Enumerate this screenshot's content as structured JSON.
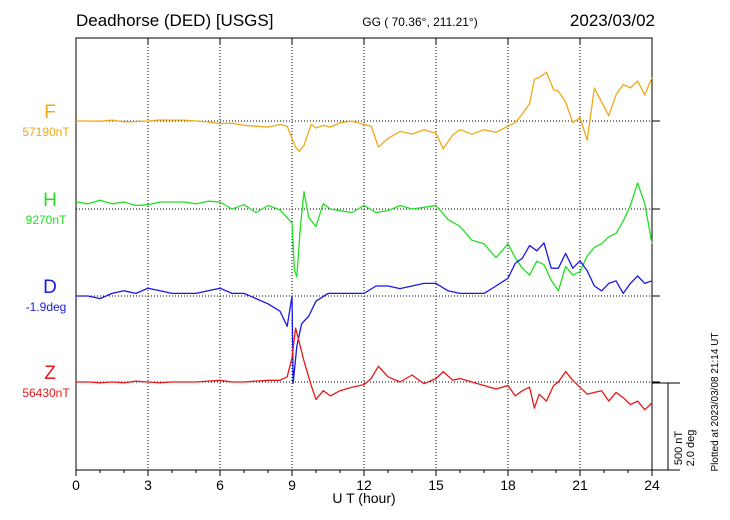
{
  "header": {
    "station": "Deadhorse (DED)  [USGS]",
    "coords": "GG ( 70.36°, 211.21°)",
    "date": "2023/03/02"
  },
  "footer": {
    "xlabel": "U T (hour)",
    "plotted": "Plotted at 2023/03/08 21:14 UT"
  },
  "scale": {
    "nt": "500 nT",
    "deg": "2.0 deg"
  },
  "chart_data": {
    "type": "line",
    "title": "Deadhorse (DED)  [USGS]",
    "xlabel": "U T (hour)",
    "ylabel": "",
    "xlim": [
      0,
      24
    ],
    "xticks": [
      0,
      3,
      6,
      9,
      12,
      15,
      18,
      21,
      24
    ],
    "xtick_labels": [
      "0",
      "3",
      "6",
      "9",
      "12",
      "15",
      "18",
      "21",
      "24"
    ],
    "grid": true,
    "scale_bar": {
      "nT": 500,
      "deg": 2.0
    },
    "series": [
      {
        "name": "F",
        "baseline_label": "57190nT",
        "unit": "nT",
        "color": "#f0a818",
        "x": [
          0,
          0.5,
          1,
          1.5,
          2,
          2.5,
          3,
          3.5,
          4,
          4.5,
          5,
          5.5,
          6,
          6.5,
          7,
          7.5,
          8,
          8.5,
          8.8,
          9,
          9.15,
          9.3,
          9.5,
          9.8,
          10,
          10.3,
          10.6,
          11,
          11.5,
          12,
          12.3,
          12.6,
          13,
          13.5,
          14,
          14.5,
          15,
          15.3,
          15.7,
          16,
          16.5,
          17,
          17.5,
          18,
          18.3,
          18.6,
          18.9,
          19.1,
          19.3,
          19.6,
          19.9,
          20.1,
          20.4,
          20.7,
          21,
          21.3,
          21.6,
          21.9,
          22.2,
          22.5,
          22.8,
          23.1,
          23.4,
          23.7,
          24
        ],
        "y": [
          0,
          0,
          -1,
          5,
          -5,
          -3,
          0,
          6,
          5,
          5,
          0,
          -5,
          -15,
          -12,
          -25,
          -30,
          -35,
          -20,
          -30,
          -100,
          -150,
          -175,
          -140,
          -20,
          -40,
          -25,
          -35,
          -10,
          0,
          -20,
          -30,
          -150,
          -100,
          -60,
          -75,
          -50,
          -70,
          -160,
          -80,
          -50,
          -75,
          -50,
          -65,
          -30,
          -10,
          40,
          100,
          240,
          250,
          280,
          180,
          170,
          110,
          -10,
          20,
          -110,
          190,
          110,
          30,
          150,
          210,
          190,
          230,
          150,
          250
        ]
      },
      {
        "name": "H",
        "baseline_label": "9270nT",
        "unit": "nT",
        "color": "#22e022",
        "x": [
          0,
          0.5,
          1,
          1.5,
          2,
          2.5,
          3,
          3.5,
          4,
          4.5,
          5,
          5.5,
          6,
          6.5,
          7,
          7.5,
          8,
          8.5,
          9,
          9.1,
          9.2,
          9.35,
          9.5,
          9.7,
          10,
          10.3,
          10.6,
          11,
          11.5,
          12,
          12.5,
          13,
          13.5,
          14,
          14.5,
          15,
          15.5,
          16,
          16.5,
          17,
          17.5,
          18,
          18.3,
          18.6,
          18.9,
          19.2,
          19.5,
          19.8,
          20.1,
          20.4,
          20.7,
          21,
          21.3,
          21.6,
          21.9,
          22.2,
          22.5,
          22.8,
          23.1,
          23.4,
          23.7,
          24
        ],
        "y": [
          40,
          30,
          50,
          30,
          40,
          20,
          25,
          40,
          40,
          40,
          30,
          45,
          40,
          0,
          25,
          -20,
          20,
          -5,
          -80,
          -350,
          -390,
          -100,
          100,
          -50,
          -100,
          30,
          0,
          -10,
          -20,
          20,
          -20,
          -10,
          20,
          0,
          10,
          20,
          -60,
          -100,
          -180,
          -200,
          -280,
          -200,
          -280,
          -340,
          -380,
          -300,
          -320,
          -410,
          -470,
          -330,
          -380,
          -360,
          -270,
          -220,
          -200,
          -160,
          -140,
          -70,
          20,
          150,
          30,
          -200
        ]
      },
      {
        "name": "D",
        "baseline_label": "-1.9deg",
        "unit": "deg",
        "color": "#1818e8",
        "x": [
          0,
          0.5,
          1,
          1.5,
          2,
          2.5,
          3,
          3.5,
          4,
          4.5,
          5,
          5.5,
          6,
          6.5,
          7,
          7.5,
          8,
          8.5,
          8.8,
          9,
          9.05,
          9.2,
          9.4,
          9.7,
          10,
          10.5,
          11,
          11.5,
          12,
          12.5,
          13,
          13.5,
          14,
          14.5,
          15,
          15.5,
          16,
          16.5,
          17,
          17.5,
          18,
          18.3,
          18.6,
          18.9,
          19.2,
          19.5,
          19.8,
          20.1,
          20.4,
          20.7,
          21,
          21.3,
          21.6,
          21.9,
          22.2,
          22.5,
          22.8,
          23.1,
          23.4,
          23.7,
          24
        ],
        "y": [
          0,
          0,
          -0.06,
          0.06,
          0.12,
          0.06,
          0.18,
          0.12,
          0.06,
          0.06,
          0.06,
          0.12,
          0.18,
          0.06,
          0.06,
          -0.06,
          -0.18,
          -0.35,
          -0.7,
          0,
          -2.0,
          -1.16,
          -0.64,
          -0.46,
          -0.12,
          0.06,
          0.06,
          0.06,
          0.06,
          0.23,
          0.23,
          0.17,
          0.23,
          0.29,
          0.29,
          0.12,
          0.06,
          0.06,
          0.06,
          0.23,
          0.41,
          0.75,
          0.87,
          1.16,
          1.04,
          1.22,
          0.64,
          0.64,
          0.98,
          0.64,
          0.81,
          0.58,
          0.23,
          0.12,
          0.29,
          0.35,
          0.06,
          0.29,
          0.46,
          0.29,
          0.35
        ]
      },
      {
        "name": "Z",
        "baseline_label": "56430nT",
        "unit": "nT",
        "color": "#e81818",
        "x": [
          0,
          0.5,
          1,
          1.5,
          2,
          2.5,
          3,
          3.5,
          4,
          4.5,
          5,
          5.5,
          6,
          6.5,
          7,
          7.5,
          8,
          8.5,
          8.8,
          9,
          9.15,
          9.3,
          9.5,
          9.8,
          10,
          10.3,
          10.6,
          11,
          11.5,
          12,
          12.3,
          12.6,
          13,
          13.5,
          14,
          14.5,
          15,
          15.3,
          15.7,
          16,
          16.5,
          17,
          17.5,
          18,
          18.3,
          18.6,
          18.9,
          19.1,
          19.3,
          19.6,
          19.9,
          20.1,
          20.4,
          20.7,
          21,
          21.3,
          21.6,
          21.9,
          22.2,
          22.5,
          22.8,
          23.1,
          23.4,
          23.7,
          24
        ],
        "y": [
          0,
          0,
          -5,
          0,
          -5,
          5,
          0,
          -5,
          0,
          0,
          0,
          5,
          10,
          0,
          0,
          5,
          10,
          10,
          30,
          140,
          310,
          230,
          120,
          -20,
          -100,
          -50,
          -80,
          -50,
          -30,
          -15,
          20,
          90,
          30,
          0,
          40,
          -10,
          20,
          60,
          10,
          20,
          0,
          -20,
          -40,
          -20,
          -80,
          -50,
          -30,
          -150,
          -70,
          -110,
          -20,
          0,
          60,
          10,
          -30,
          -70,
          -60,
          -50,
          -110,
          -60,
          -90,
          -130,
          -110,
          -160,
          -120
        ]
      }
    ]
  }
}
